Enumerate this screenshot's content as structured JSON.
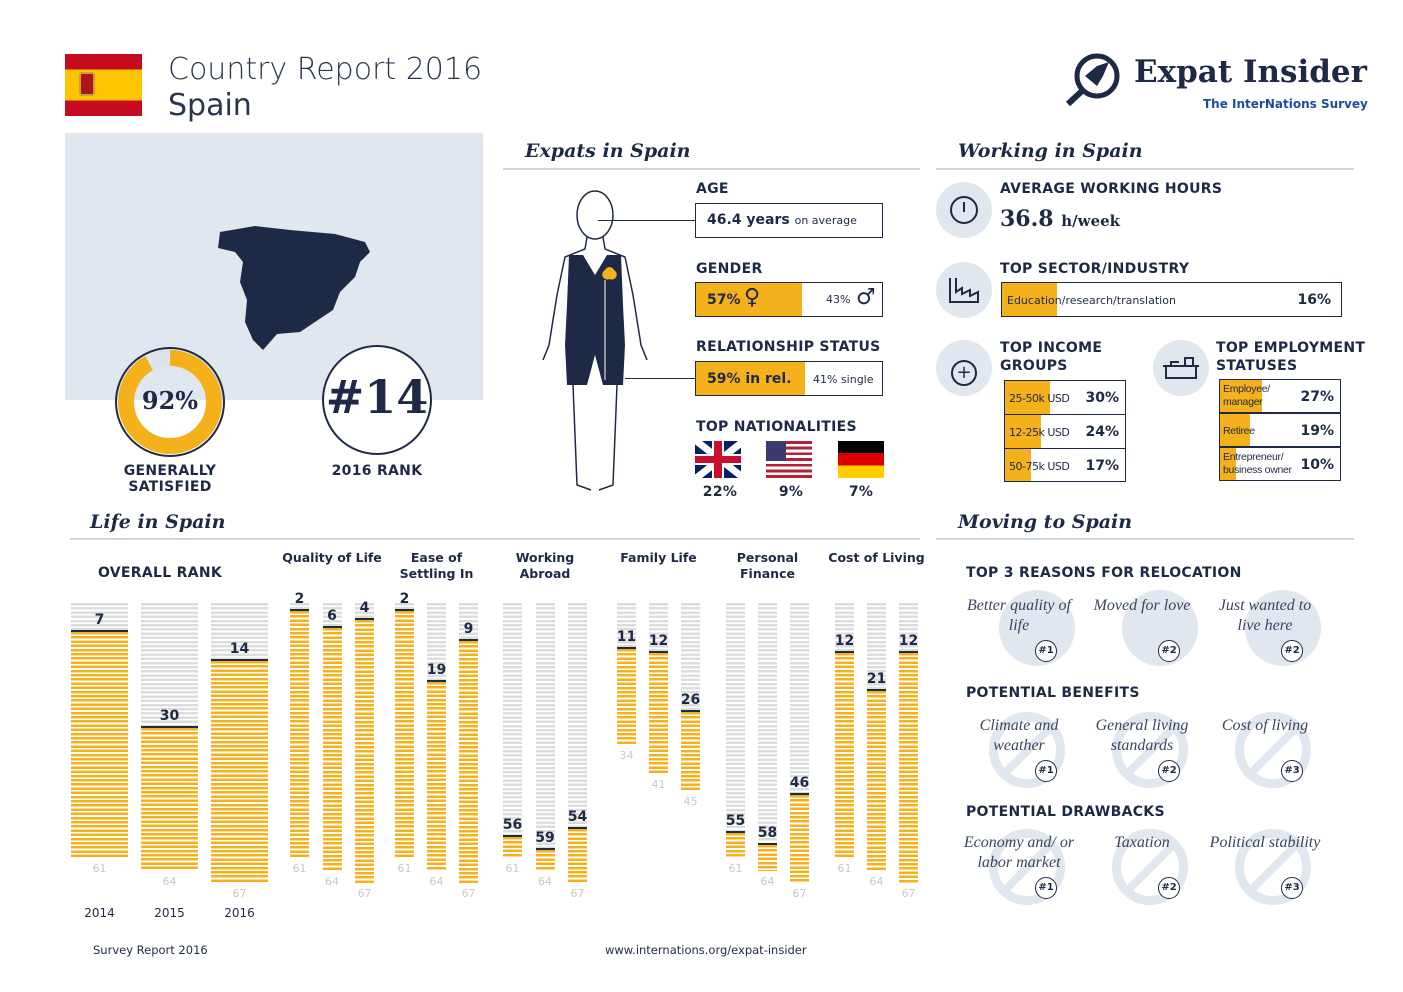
{
  "header": {
    "title": "Country Report 2016",
    "country": "Spain",
    "logo_name": "Expat Insider",
    "logo_sub": "The InterNations Survey"
  },
  "summary": {
    "satisfied_value": 92,
    "satisfied_display": "92%",
    "satisfied_label": "GENERALLY SATISFIED",
    "rank": "#14",
    "rank_label": "2016 RANK"
  },
  "expats": {
    "title": "Expats in Spain",
    "age_label": "AGE",
    "age_value": "46.4 years",
    "age_suffix": "on average",
    "gender_label": "GENDER",
    "female": "57%",
    "male": "43%",
    "female_pct": 57,
    "rel_label": "RELATIONSHIP STATUS",
    "rel_value": "59% in rel.",
    "rel_single": "41% single",
    "rel_pct": 59,
    "nat_label": "TOP NATIONALITIES",
    "nationalities": [
      {
        "flag": "uk-flag",
        "value": "22%"
      },
      {
        "flag": "usa-flag",
        "value": "9%"
      },
      {
        "flag": "germany-flag",
        "value": "7%"
      }
    ]
  },
  "working": {
    "title": "Working in Spain",
    "hours_label": "AVERAGE WORKING HOURS",
    "hours_value": "36.8",
    "hours_unit": "h/week",
    "sector_label": "TOP SECTOR/INDUSTRY",
    "sector_name": "Education/research/translation",
    "sector_value": "16%",
    "sector_pct": 16,
    "income_label": "TOP INCOME GROUPS",
    "income": [
      {
        "name": "25-50k USD",
        "value": "30%",
        "pct": 30
      },
      {
        "name": "12-25k USD",
        "value": "24%",
        "pct": 24
      },
      {
        "name": "50-75k USD",
        "value": "17%",
        "pct": 17
      }
    ],
    "emp_label": "TOP EMPLOYMENT STATUSES",
    "employment": [
      {
        "name": "Employee/ manager",
        "value": "27%",
        "pct": 27
      },
      {
        "name": "Retiree",
        "value": "19%",
        "pct": 19
      },
      {
        "name": "Entrepreneur/ business owner",
        "value": "10%",
        "pct": 10
      }
    ]
  },
  "moving": {
    "title": "Moving to Spain",
    "reasons_label": "TOP 3 REASONS FOR RELOCATION",
    "reasons": [
      {
        "text": "Better quality of life",
        "badge": "#1"
      },
      {
        "text": "Moved for love",
        "badge": "#2"
      },
      {
        "text": "Just wanted to live here",
        "badge": "#2"
      }
    ],
    "benefits_label": "POTENTIAL BENEFITS",
    "benefits": [
      {
        "text": "Climate and weather",
        "badge": "#1"
      },
      {
        "text": "General living standards",
        "badge": "#2"
      },
      {
        "text": "Cost of living",
        "badge": "#3"
      }
    ],
    "drawbacks_label": "POTENTIAL DRAWBACKS",
    "drawbacks": [
      {
        "text": "Economy and/ or labor market",
        "badge": "#1"
      },
      {
        "text": "Taxation",
        "badge": "#2"
      },
      {
        "text": "Political stability",
        "badge": "#3"
      }
    ]
  },
  "chart_data": {
    "type": "bar",
    "title": "Life in Spain",
    "overall_label": "OVERALL RANK",
    "years": [
      "2014",
      "2015",
      "2016"
    ],
    "groups": [
      {
        "name": "OVERALL RANK",
        "ranks": [
          7,
          30,
          14
        ],
        "totals": [
          61,
          64,
          67
        ]
      },
      {
        "name": "Quality of Life",
        "ranks": [
          2,
          6,
          4
        ],
        "totals": [
          61,
          64,
          67
        ]
      },
      {
        "name": "Ease of Settling In",
        "ranks": [
          2,
          19,
          9
        ],
        "totals": [
          61,
          64,
          67
        ]
      },
      {
        "name": "Working Abroad",
        "ranks": [
          56,
          59,
          54
        ],
        "totals": [
          61,
          64,
          67
        ]
      },
      {
        "name": "Family Life",
        "ranks": [
          11,
          12,
          26
        ],
        "totals": [
          34,
          41,
          45
        ]
      },
      {
        "name": "Personal Finance",
        "ranks": [
          55,
          58,
          46
        ],
        "totals": [
          61,
          64,
          67
        ]
      },
      {
        "name": "Cost of Living",
        "ranks": [
          12,
          21,
          12
        ],
        "totals": [
          61,
          64,
          67
        ]
      }
    ],
    "colors": {
      "rank": "#f5b11b",
      "remaining": "#dcdcdc",
      "marker": "#1e2a45"
    }
  },
  "footer": {
    "left": "Survey Report 2016",
    "center": "www.internations.org/expat-insider"
  }
}
